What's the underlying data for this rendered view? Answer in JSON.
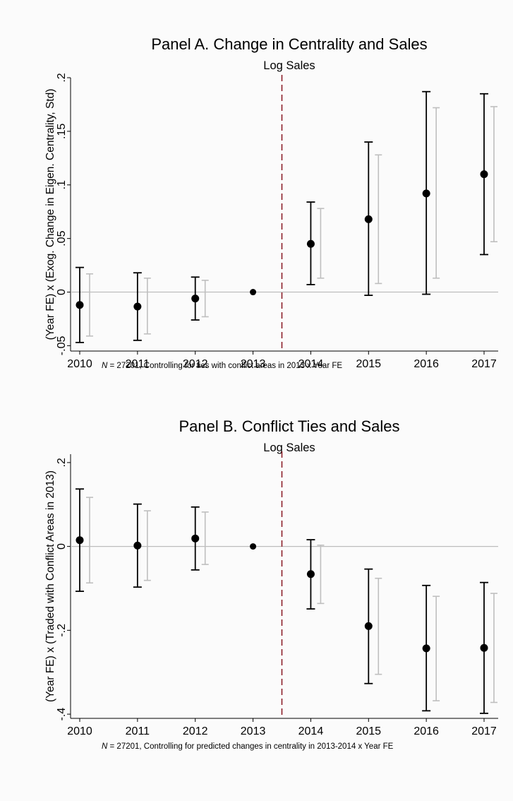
{
  "chart_data": [
    {
      "type": "scatter",
      "title": "Panel A. Change in Centrality and Sales",
      "subtitle": "Log Sales",
      "ylabel": "(Year FE) x (Exog. Change in Eigen. Centrality, Std)",
      "xlabel": "",
      "note_italic": "N",
      "note": " = 27201, Controlling for ties with conflict areas in 2013 x Year FE",
      "ylim": [
        -0.055,
        0.2
      ],
      "yticks": [
        -0.05,
        0,
        0.05,
        0.1,
        0.15,
        0.2
      ],
      "ytick_labels": [
        "-.05",
        "0",
        ".05",
        ".1",
        ".15",
        ".2"
      ],
      "reference_line_x": 2013.5,
      "categories": [
        "2010",
        "2011",
        "2012",
        "2013",
        "2014",
        "2015",
        "2016",
        "2017"
      ],
      "series": [
        {
          "color": "#000000",
          "point": [
            -0.012,
            -0.0135,
            -0.006,
            0,
            0.045,
            0.068,
            0.092,
            0.11
          ],
          "ci_low": [
            -0.047,
            -0.045,
            -0.026,
            0,
            0.007,
            -0.003,
            -0.002,
            0.035
          ],
          "ci_high": [
            0.023,
            0.018,
            0.014,
            0,
            0.084,
            0.14,
            0.187,
            0.185
          ]
        },
        {
          "color": "#bfbfbf",
          "ci_low": [
            -0.041,
            -0.039,
            -0.023,
            0,
            0.013,
            0.008,
            0.013,
            0.047
          ],
          "ci_high": [
            0.017,
            0.013,
            0.011,
            0,
            0.078,
            0.128,
            0.172,
            0.173
          ]
        }
      ]
    },
    {
      "type": "scatter",
      "title": "Panel B. Conflict Ties and Sales",
      "subtitle": "Log Sales",
      "ylabel": "(Year FE) x (Traded with Conflict Areas in 2013)",
      "xlabel": "",
      "note_italic": "N",
      "note": " = 27201, Controlling for predicted changes in centrality in 2013-2014 x Year FE",
      "ylim": [
        -0.41,
        0.22
      ],
      "yticks": [
        -0.4,
        -0.2,
        0,
        0.2
      ],
      "ytick_labels": [
        "-.4",
        "-.2",
        "0",
        ".2"
      ],
      "reference_line_x": 2013.5,
      "categories": [
        "2010",
        "2011",
        "2012",
        "2013",
        "2014",
        "2015",
        "2016",
        "2017"
      ],
      "series": [
        {
          "color": "#000000",
          "point": [
            0.015,
            0.002,
            0.019,
            0,
            -0.066,
            -0.19,
            -0.243,
            -0.242
          ],
          "ci_low": [
            -0.107,
            -0.097,
            -0.056,
            0,
            -0.149,
            -0.327,
            -0.392,
            -0.398
          ],
          "ci_high": [
            0.137,
            0.101,
            0.094,
            0,
            0.016,
            -0.054,
            -0.093,
            -0.086
          ]
        },
        {
          "color": "#bfbfbf",
          "ci_low": [
            -0.087,
            -0.081,
            -0.043,
            0,
            -0.136,
            -0.305,
            -0.368,
            -0.372
          ],
          "ci_high": [
            0.117,
            0.085,
            0.082,
            0,
            0.003,
            -0.076,
            -0.119,
            -0.112
          ]
        }
      ]
    }
  ]
}
